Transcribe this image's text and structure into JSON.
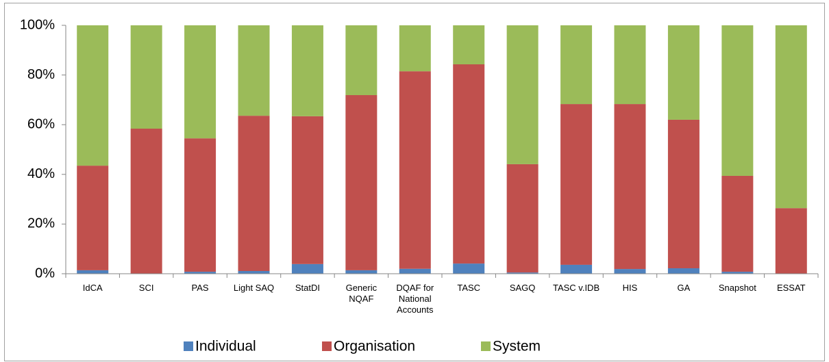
{
  "chart_data": {
    "type": "stacked_bar",
    "categories": [
      "IdCA",
      "SCI",
      "PAS",
      "Light SAQ",
      "StatDI",
      "Generic NQAF",
      "DQAF for National Accounts",
      "TASC",
      "SAGQ",
      "TASC v.IDB",
      "HIS",
      "GA",
      "Snapshot",
      "ESSAT"
    ],
    "series": [
      {
        "name": "Individual",
        "color": "#4f81bd",
        "values": [
          1.4,
          0,
          0.8,
          1.1,
          3.9,
          1.4,
          2.0,
          4.1,
          0.5,
          3.6,
          1.9,
          2.2,
          0.8,
          0
        ]
      },
      {
        "name": "Organisation",
        "color": "#c0504d",
        "values": [
          42.1,
          58.4,
          53.7,
          62.5,
          59.5,
          70.5,
          79.5,
          80.2,
          43.6,
          64.7,
          66.4,
          59.8,
          38.6,
          26.4
        ]
      },
      {
        "name": "System",
        "color": "#9bbb59",
        "values": [
          56.5,
          41.6,
          45.5,
          36.4,
          36.6,
          28.1,
          18.5,
          15.7,
          55.9,
          31.7,
          31.7,
          38.0,
          60.6,
          73.6
        ]
      }
    ],
    "ylim": [
      0,
      100
    ],
    "yticks": [
      {
        "value": 0,
        "label": "0%"
      },
      {
        "value": 20,
        "label": "20%"
      },
      {
        "value": 40,
        "label": "40%"
      },
      {
        "value": 60,
        "label": "60%"
      },
      {
        "value": 80,
        "label": "80%"
      },
      {
        "value": 100,
        "label": "100%"
      }
    ],
    "grid": false,
    "legend": "bottom"
  }
}
